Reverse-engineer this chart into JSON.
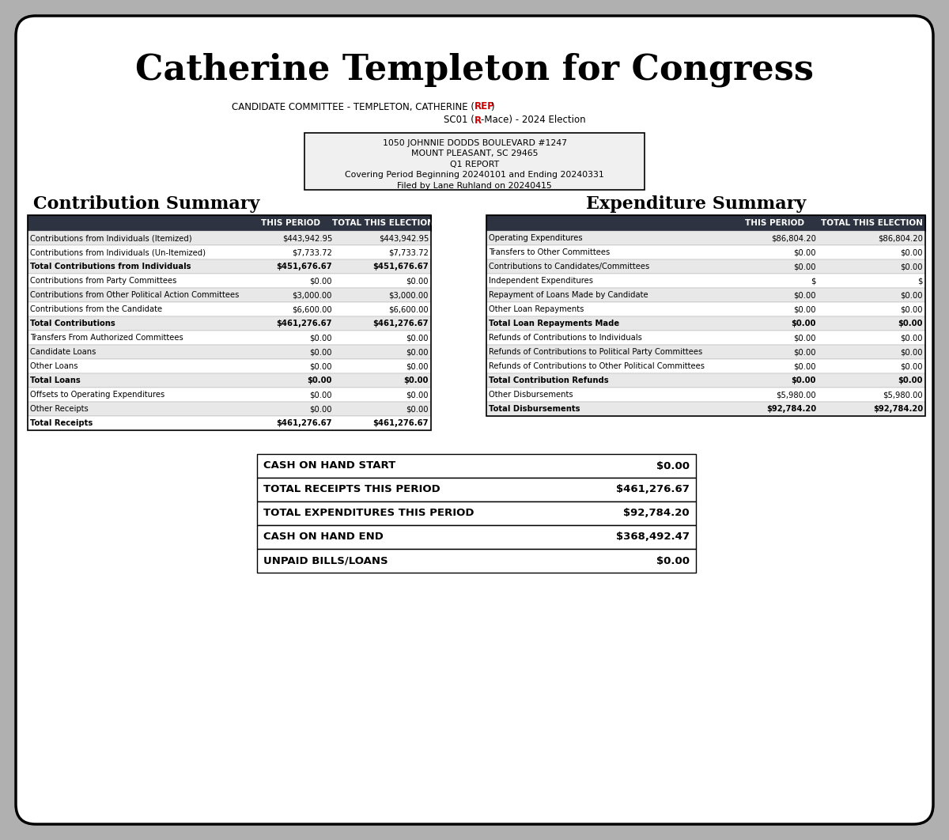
{
  "title": "Catherine Templeton for Congress",
  "subtitle1_pre": "CANDIDATE COMMITTEE - TEMPLETON, CATHERINE (",
  "subtitle1_red": "REP",
  "subtitle1_post": ")",
  "subtitle2_pre": "SC01 (",
  "subtitle2_red": "R",
  "subtitle2_post": "-Mace) - 2024 Election",
  "address_lines": [
    "1050 JOHNNIE DODDS BOULEVARD #1247",
    "MOUNT PLEASANT, SC 29465",
    "Q1 REPORT",
    "Covering Period Beginning 20240101 and Ending 20240331",
    "Filed by Lane Ruhland on 20240415"
  ],
  "contribution_title": "Contribution Summary",
  "expenditure_title": "Expenditure Summary",
  "contribution_rows": [
    [
      "Contributions from Individuals (Itemized)",
      "$443,942.95",
      "$443,942.95"
    ],
    [
      "Contributions from Individuals (Un-Itemized)",
      "$7,733.72",
      "$7,733.72"
    ],
    [
      "Total Contributions from Individuals",
      "$451,676.67",
      "$451,676.67"
    ],
    [
      "Contributions from Party Committees",
      "$0.00",
      "$0.00"
    ],
    [
      "Contributions from Other Political Action Committees",
      "$3,000.00",
      "$3,000.00"
    ],
    [
      "Contributions from the Candidate",
      "$6,600.00",
      "$6,600.00"
    ],
    [
      "Total Contributions",
      "$461,276.67",
      "$461,276.67"
    ],
    [
      "Transfers From Authorized Committees",
      "$0.00",
      "$0.00"
    ],
    [
      "Candidate Loans",
      "$0.00",
      "$0.00"
    ],
    [
      "Other Loans",
      "$0.00",
      "$0.00"
    ],
    [
      "Total Loans",
      "$0.00",
      "$0.00"
    ],
    [
      "Offsets to Operating Expenditures",
      "$0.00",
      "$0.00"
    ],
    [
      "Other Receipts",
      "$0.00",
      "$0.00"
    ],
    [
      "Total Receipts",
      "$461,276.67",
      "$461,276.67"
    ]
  ],
  "contrib_bold_rows": [
    2,
    6,
    10,
    13
  ],
  "expenditure_rows": [
    [
      "Operating Expenditures",
      "$86,804.20",
      "$86,804.20"
    ],
    [
      "Transfers to Other Committees",
      "$0.00",
      "$0.00"
    ],
    [
      "Contributions to Candidates/Committees",
      "$0.00",
      "$0.00"
    ],
    [
      "Independent Expenditures",
      "$",
      "$"
    ],
    [
      "Repayment of Loans Made by Candidate",
      "$0.00",
      "$0.00"
    ],
    [
      "Other Loan Repayments",
      "$0.00",
      "$0.00"
    ],
    [
      "Total Loan Repayments Made",
      "$0.00",
      "$0.00"
    ],
    [
      "Refunds of Contributions to Individuals",
      "$0.00",
      "$0.00"
    ],
    [
      "Refunds of Contributions to Political Party Committees",
      "$0.00",
      "$0.00"
    ],
    [
      "Refunds of Contributions to Other Political Committees",
      "$0.00",
      "$0.00"
    ],
    [
      "Total Contribution Refunds",
      "$0.00",
      "$0.00"
    ],
    [
      "Other Disbursements",
      "$5,980.00",
      "$5,980.00"
    ],
    [
      "Total Disbursements",
      "$92,784.20",
      "$92,784.20"
    ]
  ],
  "exp_bold_rows": [
    6,
    10,
    12
  ],
  "summary_rows": [
    [
      "CASH ON HAND START",
      "$0.00"
    ],
    [
      "TOTAL RECEIPTS THIS PERIOD",
      "$461,276.67"
    ],
    [
      "TOTAL EXPENDITURES THIS PERIOD",
      "$92,784.20"
    ],
    [
      "CASH ON HAND END",
      "$368,492.47"
    ],
    [
      "UNPAID BILLS/LOANS",
      "$0.00"
    ]
  ],
  "header_bg": "#2d3340",
  "row_alt_bg": "#e8e8e8",
  "row_bg": "#ffffff",
  "red_color": "#cc0000",
  "outer_bg": "#ffffff",
  "page_bg": "#b0b0b0"
}
